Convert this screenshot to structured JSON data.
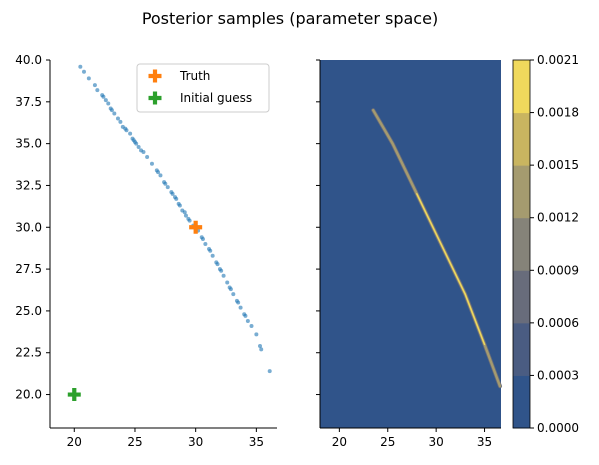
{
  "title": "Posterior samples (parameter space)",
  "chart_data": [
    {
      "type": "scatter",
      "xlim": [
        18.0,
        36.7
      ],
      "ylim": [
        18.0,
        40.0
      ],
      "xticks": [
        20,
        25,
        30,
        35
      ],
      "yticks": [
        20.0,
        22.5,
        25.0,
        27.5,
        30.0,
        32.5,
        35.0,
        37.5,
        40.0
      ],
      "ytick_labels": [
        "20.0",
        "22.5",
        "25.0",
        "27.5",
        "30.0",
        "32.5",
        "35.0",
        "37.5",
        "40.0"
      ],
      "legend_position": "top-right",
      "series": [
        {
          "name": "",
          "color": "#1f77b4",
          "points": [
            [
              20.5,
              39.6
            ],
            [
              20.8,
              39.3
            ],
            [
              21.2,
              38.9
            ],
            [
              21.7,
              38.5
            ],
            [
              21.9,
              38.2
            ],
            [
              22.3,
              37.9
            ],
            [
              22.6,
              37.6
            ],
            [
              22.8,
              37.4
            ],
            [
              23.1,
              37.0
            ],
            [
              23.3,
              36.8
            ],
            [
              23.6,
              36.5
            ],
            [
              23.8,
              36.3
            ],
            [
              24.0,
              36.0
            ],
            [
              24.3,
              35.8
            ],
            [
              24.6,
              35.6
            ],
            [
              24.8,
              35.3
            ],
            [
              25.1,
              35.0
            ],
            [
              25.3,
              34.8
            ],
            [
              25.7,
              34.5
            ],
            [
              26.0,
              34.2
            ],
            [
              26.4,
              33.8
            ],
            [
              26.8,
              33.4
            ],
            [
              27.1,
              33.1
            ],
            [
              27.4,
              32.7
            ],
            [
              27.7,
              32.4
            ],
            [
              28.0,
              32.1
            ],
            [
              28.3,
              31.8
            ],
            [
              28.6,
              31.4
            ],
            [
              28.9,
              31.0
            ],
            [
              29.2,
              30.7
            ],
            [
              29.5,
              30.4
            ],
            [
              29.8,
              30.1
            ],
            [
              30.2,
              29.8
            ],
            [
              30.5,
              29.4
            ],
            [
              30.8,
              29.0
            ],
            [
              31.1,
              28.7
            ],
            [
              31.4,
              28.3
            ],
            [
              31.7,
              27.9
            ],
            [
              32.0,
              27.5
            ],
            [
              32.3,
              27.1
            ],
            [
              32.6,
              26.7
            ],
            [
              32.9,
              26.3
            ],
            [
              33.1,
              26.0
            ],
            [
              33.4,
              25.6
            ],
            [
              33.7,
              25.2
            ],
            [
              34.0,
              24.8
            ],
            [
              34.3,
              24.4
            ],
            [
              34.6,
              24.1
            ],
            [
              35.0,
              23.6
            ],
            [
              35.3,
              22.9
            ],
            [
              35.4,
              22.7
            ],
            [
              36.1,
              21.4
            ],
            [
              22.4,
              37.8
            ],
            [
              23.0,
              37.1
            ],
            [
              24.2,
              35.9
            ],
            [
              25.0,
              35.1
            ],
            [
              25.5,
              34.6
            ],
            [
              26.9,
              33.3
            ],
            [
              27.5,
              32.6
            ],
            [
              28.1,
              32.0
            ],
            [
              28.4,
              31.7
            ],
            [
              29.1,
              30.9
            ],
            [
              29.4,
              30.5
            ],
            [
              30.6,
              29.3
            ],
            [
              31.2,
              28.6
            ],
            [
              32.1,
              27.4
            ],
            [
              32.8,
              26.4
            ],
            [
              33.5,
              25.5
            ],
            [
              34.1,
              24.7
            ],
            [
              24.9,
              35.2
            ],
            [
              28.7,
              31.3
            ],
            [
              31.8,
              27.8
            ]
          ]
        },
        {
          "name": "Truth",
          "color": "#ff7f0e",
          "marker": "plus",
          "points": [
            [
              30.0,
              30.0
            ]
          ]
        },
        {
          "name": "Initial guess",
          "color": "#2ca02c",
          "marker": "plus",
          "points": [
            [
              20.0,
              20.0
            ]
          ]
        }
      ]
    },
    {
      "type": "heatmap",
      "xlim": [
        18.0,
        36.7
      ],
      "ylim": [
        18.0,
        40.0
      ],
      "xticks": [
        20,
        25,
        30,
        35
      ],
      "background_color": "#30548a",
      "ridge": [
        [
          23.5,
          37.0
        ],
        [
          25.5,
          35.0
        ],
        [
          28.0,
          32.0
        ],
        [
          30.5,
          29.0
        ],
        [
          33.0,
          26.0
        ],
        [
          35.0,
          23.0
        ],
        [
          36.6,
          20.5
        ]
      ],
      "colorbar": {
        "vmin": 0.0,
        "vmax": 0.0021,
        "ticks": [
          "0.0000",
          "0.0003",
          "0.0006",
          "0.0009",
          "0.0012",
          "0.0015",
          "0.0018",
          "0.0021"
        ],
        "band_colors": [
          "#30548a",
          "#4a5c82",
          "#686c7b",
          "#858379",
          "#a59b6f",
          "#c9b560",
          "#f0d95c"
        ]
      }
    }
  ]
}
